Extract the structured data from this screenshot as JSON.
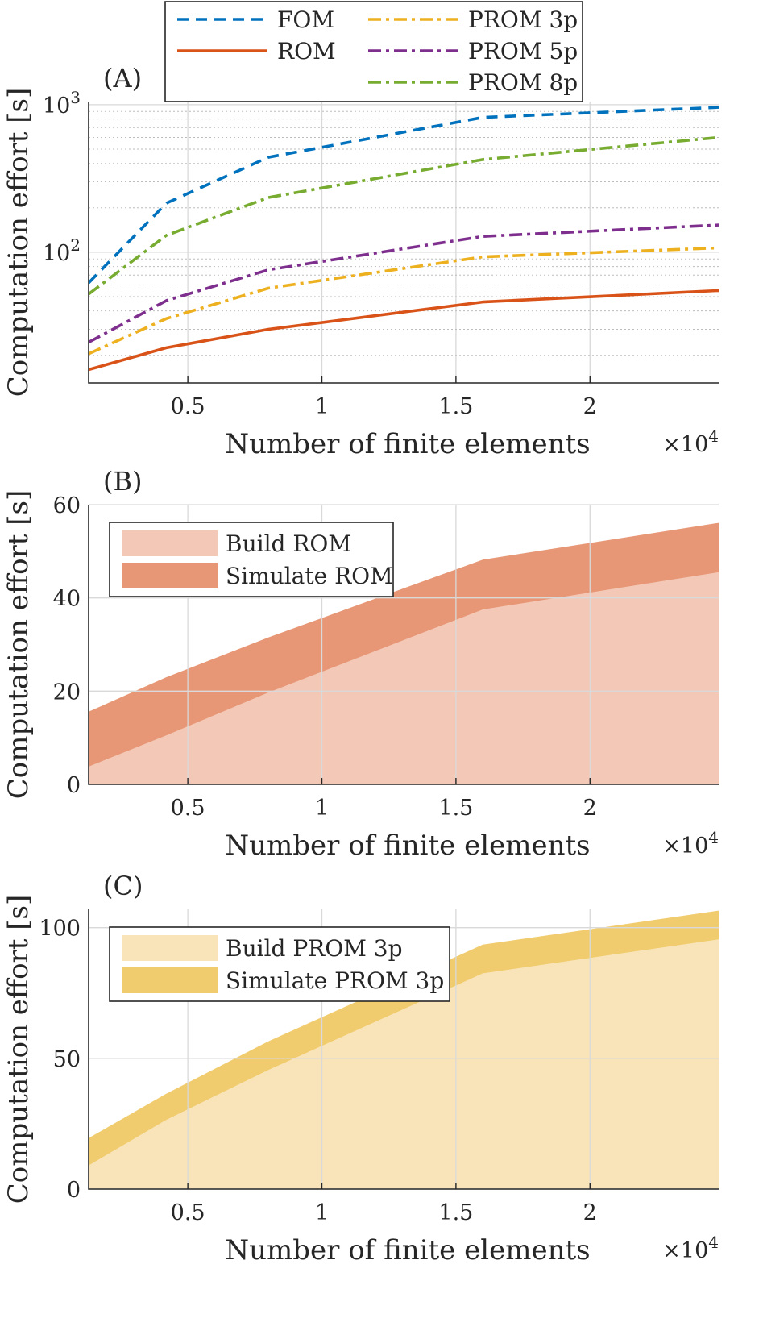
{
  "chart_data": [
    {
      "panel": "(A)",
      "type": "line",
      "yscale": "log",
      "xlabel": "Number of finite elements",
      "ylabel": "Computation effort [s]",
      "x_multiplier": "×10",
      "x_multiplier_exp": "4",
      "xlim": [
        0.13,
        2.48
      ],
      "ylim": [
        13,
        1050
      ],
      "xticks": [
        0.5,
        1,
        1.5,
        2
      ],
      "xticklabels": [
        "0.5",
        "1",
        "1.5",
        "2"
      ],
      "yticks": [
        100,
        1000
      ],
      "yticklabels": [
        {
          "base": "10",
          "exp": "2"
        },
        {
          "base": "10",
          "exp": "3"
        }
      ],
      "grid": true,
      "legend_position": "top",
      "x": [
        0.13,
        0.42,
        0.8,
        1.6,
        2.48
      ],
      "series": [
        {
          "name": "FOM",
          "color": "#0072BD",
          "dash": "dashed",
          "values": [
            62,
            215,
            440,
            820,
            960
          ]
        },
        {
          "name": "ROM",
          "color": "#D95319",
          "dash": "solid",
          "values": [
            16,
            22.5,
            30,
            46,
            55
          ]
        },
        {
          "name": "PROM 3p",
          "color": "#EDB120",
          "dash": "dashdot",
          "values": [
            20.5,
            35.5,
            57,
            93,
            107
          ]
        },
        {
          "name": "PROM 5p",
          "color": "#7E2F8E",
          "dash": "dashdot",
          "values": [
            24.5,
            47,
            76,
            128,
            153
          ]
        },
        {
          "name": "PROM 8p",
          "color": "#77AC30",
          "dash": "dashdot",
          "values": [
            52,
            130,
            235,
            425,
            600
          ]
        }
      ]
    },
    {
      "panel": "(B)",
      "type": "area",
      "stacked": true,
      "xlabel": "Number of finite elements",
      "ylabel": "Computation effort [s]",
      "x_multiplier": "×10",
      "x_multiplier_exp": "4",
      "xlim": [
        0.13,
        2.48
      ],
      "ylim": [
        0,
        60
      ],
      "xticks": [
        0.5,
        1,
        1.5,
        2
      ],
      "xticklabels": [
        "0.5",
        "1",
        "1.5",
        "2"
      ],
      "yticks": [
        0,
        20,
        40,
        60
      ],
      "yticklabels": [
        "0",
        "20",
        "40",
        "60"
      ],
      "grid": true,
      "legend_position": "top-left",
      "x": [
        0.13,
        0.42,
        0.8,
        1.6,
        2.48
      ],
      "series": [
        {
          "name": "Build ROM",
          "color": "#F4C8B7",
          "values": [
            3.8,
            10.5,
            19.7,
            37.5,
            45.5
          ]
        },
        {
          "name": "Simulate ROM",
          "color": "#E79775",
          "values": [
            11.8,
            12.5,
            11.8,
            10.7,
            10.6
          ]
        }
      ]
    },
    {
      "panel": "(C)",
      "type": "area",
      "stacked": true,
      "xlabel": "Number of finite elements",
      "ylabel": "Computation effort [s]",
      "x_multiplier": "×10",
      "x_multiplier_exp": "4",
      "xlim": [
        0.13,
        2.48
      ],
      "ylim": [
        0,
        107
      ],
      "xticks": [
        0.5,
        1,
        1.5,
        2
      ],
      "xticklabels": [
        "0.5",
        "1",
        "1.5",
        "2"
      ],
      "yticks": [
        0,
        50,
        100
      ],
      "yticklabels": [
        "0",
        "50",
        "100"
      ],
      "grid": true,
      "legend_position": "top-left",
      "x": [
        0.13,
        0.42,
        0.8,
        1.6,
        2.48
      ],
      "series": [
        {
          "name": "Build PROM 3p",
          "color": "#F9E4B9",
          "values": [
            9,
            26.5,
            45.5,
            82.5,
            95.5
          ]
        },
        {
          "name": "Simulate PROM 3p",
          "color": "#F1CC6E",
          "values": [
            10.5,
            10,
            11,
            11,
            11
          ]
        }
      ]
    }
  ]
}
